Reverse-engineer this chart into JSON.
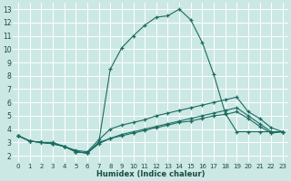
{
  "xlabel": "Humidex (Indice chaleur)",
  "bg_color": "#cce8e4",
  "line_color": "#1a6b60",
  "grid_color": "#ffffff",
  "xlim": [
    -0.5,
    23.5
  ],
  "ylim": [
    1.5,
    13.5
  ],
  "xticks": [
    0,
    1,
    2,
    3,
    4,
    5,
    6,
    7,
    8,
    9,
    10,
    11,
    12,
    13,
    14,
    15,
    16,
    17,
    18,
    19,
    20,
    21,
    22,
    23
  ],
  "yticks": [
    2,
    3,
    4,
    5,
    6,
    7,
    8,
    9,
    10,
    11,
    12,
    13
  ],
  "line1": {
    "x": [
      0,
      1,
      2,
      3,
      4,
      5,
      6,
      7,
      8,
      9,
      10,
      11,
      12,
      13,
      14,
      15,
      16,
      17,
      18,
      19,
      20,
      21,
      22,
      23
    ],
    "y": [
      3.5,
      3.1,
      3.0,
      3.0,
      2.7,
      2.4,
      2.3,
      3.2,
      4.0,
      4.3,
      4.5,
      4.7,
      5.0,
      5.2,
      5.4,
      5.6,
      5.8,
      6.0,
      6.2,
      6.4,
      5.3,
      4.8,
      4.1,
      3.8
    ]
  },
  "line2": {
    "x": [
      0,
      1,
      2,
      3,
      4,
      5,
      6,
      7,
      8,
      9,
      10,
      11,
      12,
      13,
      14,
      15,
      16,
      17,
      18,
      19,
      20,
      21,
      22,
      23
    ],
    "y": [
      3.5,
      3.1,
      3.0,
      2.9,
      2.7,
      2.3,
      2.2,
      2.9,
      3.3,
      3.6,
      3.8,
      4.0,
      4.2,
      4.4,
      4.6,
      4.8,
      5.0,
      5.2,
      5.4,
      5.6,
      5.0,
      4.4,
      3.8,
      3.8
    ]
  },
  "line3": {
    "x": [
      0,
      1,
      2,
      3,
      4,
      5,
      6,
      7,
      8,
      9,
      10,
      11,
      12,
      13,
      14,
      15,
      16,
      17,
      18,
      19,
      20,
      21,
      22,
      23
    ],
    "y": [
      3.5,
      3.1,
      3.0,
      2.9,
      2.7,
      2.3,
      2.2,
      3.0,
      3.3,
      3.5,
      3.7,
      3.9,
      4.1,
      4.3,
      4.5,
      4.6,
      4.8,
      5.0,
      5.1,
      5.3,
      4.8,
      4.2,
      3.7,
      3.8
    ]
  },
  "line4": {
    "x": [
      0,
      1,
      2,
      3,
      4,
      5,
      6,
      7,
      8,
      9,
      10,
      11,
      12,
      13,
      14,
      15,
      16,
      17,
      18,
      19,
      20,
      21,
      22,
      23
    ],
    "y": [
      3.5,
      3.1,
      3.0,
      2.9,
      2.7,
      2.3,
      2.2,
      3.0,
      8.5,
      10.1,
      11.0,
      11.8,
      12.4,
      12.5,
      13.0,
      12.2,
      10.5,
      8.1,
      5.2,
      3.8,
      3.8,
      3.8,
      3.8,
      3.8
    ]
  }
}
